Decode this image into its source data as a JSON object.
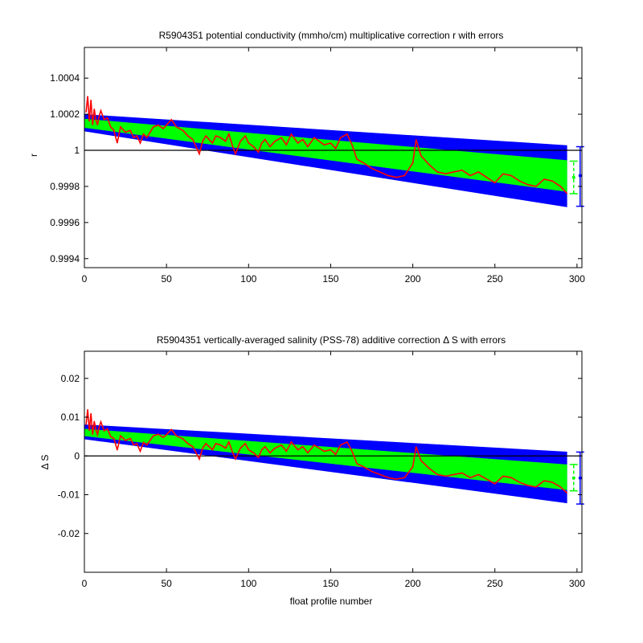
{
  "chart_data": [
    {
      "type": "area",
      "title": "R5904351 potential conductivity (mmho/cm) multiplicative correction r with errors",
      "xlabel": "",
      "ylabel": "r",
      "xlim": [
        0,
        303
      ],
      "ylim": [
        0.99935,
        1.00057
      ],
      "xticks": [
        0,
        50,
        100,
        150,
        200,
        250,
        300
      ],
      "xtick_labels": [
        "0",
        "50",
        "100",
        "150",
        "200",
        "250",
        "300"
      ],
      "yticks": [
        0.9994,
        0.9996,
        0.9998,
        1.0,
        1.0002,
        1.0004
      ],
      "ytick_labels": [
        "0.9994",
        "0.9996",
        "0.9998",
        "1",
        "1.0002",
        "1.0004"
      ],
      "reference_line": 1.0,
      "outer_band": {
        "x": [
          0,
          294
        ],
        "upper": [
          1.0002,
          1.000028
        ],
        "lower": [
          1.000105,
          0.999685
        ],
        "color": "#0000ff"
      },
      "inner_band": {
        "x": [
          0,
          294
        ],
        "upper": [
          1.000175,
          0.999945
        ],
        "lower": [
          1.000125,
          0.99977
        ],
        "color": "#00ff00"
      },
      "error_bars": [
        {
          "x": 298,
          "center": 0.99985,
          "low": 0.99976,
          "high": 0.99994,
          "color": "#00ff00"
        },
        {
          "x": 298,
          "center": 0.99986,
          "low": 0.99969,
          "high": 1.00002,
          "color": "#0000ff"
        }
      ],
      "series": [
        {
          "color": "#ff0000",
          "x": [
            1,
            2,
            3,
            4,
            5,
            6,
            7,
            8,
            9,
            10,
            12,
            14,
            16,
            18,
            20,
            22,
            25,
            28,
            30,
            32,
            34,
            36,
            38,
            40,
            42,
            45,
            48,
            50,
            53,
            56,
            60,
            63,
            66,
            70,
            72,
            74,
            76,
            78,
            80,
            83,
            86,
            88,
            90,
            92,
            95,
            98,
            100,
            103,
            106,
            108,
            110,
            113,
            116,
            120,
            123,
            126,
            130,
            133,
            136,
            140,
            143,
            146,
            150,
            153,
            156,
            160,
            163,
            166,
            170,
            175,
            180,
            185,
            190,
            195,
            200,
            202,
            205,
            210,
            215,
            220,
            225,
            230,
            235,
            240,
            245,
            250,
            255,
            260,
            265,
            270,
            275,
            280,
            285,
            290,
            294
          ],
          "y": [
            1.00021,
            1.0003,
            1.00016,
            1.00028,
            1.00014,
            1.00023,
            1.00017,
            1.00014,
            1.00019,
            1.00022,
            1.00017,
            1.00018,
            1.00013,
            1.00011,
            1.00004,
            1.00013,
            1.0001,
            1.00011,
            1.00007,
            1.00008,
            1.00004,
            1.00009,
            1.00007,
            1.0001,
            1.00013,
            1.00014,
            1.00012,
            1.00014,
            1.00017,
            1.00013,
            1.00011,
            1.00008,
            1.00006,
            0.99998,
            1.00005,
            1.00008,
            1.00006,
            1.00004,
            1.00008,
            1.00007,
            1.00005,
            1.00009,
            1.00003,
            0.99998,
            1.00005,
            1.00008,
            1.00004,
            1.00002,
            0.99999,
            1.00004,
            1.00006,
            1.00002,
            1.00005,
            1.00007,
            1.00003,
            1.00009,
            1.00004,
            1.00006,
            1.00002,
            1.00007,
            1.00005,
            1.00003,
            1.00004,
            1.00001,
            1.00007,
            1.00009,
            1.00003,
            0.99995,
            0.99993,
            0.9999,
            0.99988,
            0.99986,
            0.99985,
            0.99986,
            0.99993,
            1.00006,
            0.99997,
            0.99992,
            0.99988,
            0.99987,
            0.99988,
            0.99989,
            0.99986,
            0.99988,
            0.99985,
            0.99982,
            0.99987,
            0.99986,
            0.99983,
            0.99981,
            0.9998,
            0.99984,
            0.99983,
            0.9998,
            0.99976
          ]
        }
      ]
    },
    {
      "type": "area",
      "title": "R5904351 vertically-averaged salinity (PSS-78) additive correction Δ S with errors",
      "xlabel": "float profile number",
      "ylabel": "Δ S",
      "xlim": [
        0,
        303
      ],
      "ylim": [
        -0.03,
        0.027
      ],
      "xticks": [
        0,
        50,
        100,
        150,
        200,
        250,
        300
      ],
      "xtick_labels": [
        "0",
        "50",
        "100",
        "150",
        "200",
        "250",
        "300"
      ],
      "yticks": [
        -0.02,
        -0.01,
        0.0,
        0.01,
        0.02
      ],
      "ytick_labels": [
        "-0.02",
        "-0.01",
        "0",
        "0.01",
        "0.02"
      ],
      "reference_line": 0.0,
      "outer_band": {
        "x": [
          0,
          294
        ],
        "upper": [
          0.0081,
          0.0011
        ],
        "lower": [
          0.0043,
          -0.0122
        ],
        "color": "#0000ff"
      },
      "inner_band": {
        "x": [
          0,
          294
        ],
        "upper": [
          0.007,
          -0.0022
        ],
        "lower": [
          0.0051,
          -0.0088
        ],
        "color": "#00ff00"
      },
      "error_bars": [
        {
          "x": 298,
          "center": -0.0057,
          "low": -0.009,
          "high": -0.0022,
          "color": "#00ff00"
        },
        {
          "x": 298,
          "center": -0.0057,
          "low": -0.0124,
          "high": 0.001,
          "color": "#0000ff"
        }
      ],
      "series": [
        {
          "color": "#ff0000",
          "x": [
            1,
            2,
            3,
            4,
            5,
            6,
            7,
            8,
            9,
            10,
            12,
            14,
            16,
            18,
            20,
            22,
            25,
            28,
            30,
            32,
            34,
            36,
            38,
            40,
            42,
            45,
            48,
            50,
            53,
            56,
            60,
            63,
            66,
            70,
            72,
            74,
            76,
            78,
            80,
            83,
            86,
            88,
            90,
            92,
            95,
            98,
            100,
            103,
            106,
            108,
            110,
            113,
            116,
            120,
            123,
            126,
            130,
            133,
            136,
            140,
            143,
            146,
            150,
            153,
            156,
            160,
            163,
            166,
            170,
            175,
            180,
            185,
            190,
            195,
            200,
            202,
            205,
            210,
            215,
            220,
            225,
            230,
            235,
            240,
            245,
            250,
            255,
            260,
            265,
            270,
            275,
            280,
            285,
            290,
            294
          ],
          "y": [
            0.008,
            0.012,
            0.0065,
            0.011,
            0.0055,
            0.009,
            0.0068,
            0.0055,
            0.0075,
            0.0088,
            0.0065,
            0.007,
            0.005,
            0.0045,
            0.0015,
            0.0052,
            0.004,
            0.0045,
            0.0028,
            0.0032,
            0.0012,
            0.0035,
            0.0028,
            0.004,
            0.0052,
            0.0056,
            0.0048,
            0.0055,
            0.0068,
            0.0052,
            0.0044,
            0.0032,
            0.0024,
            -0.0008,
            0.002,
            0.0032,
            0.0024,
            0.0016,
            0.0032,
            0.0028,
            0.002,
            0.0036,
            0.0012,
            -0.0008,
            0.002,
            0.0032,
            0.0016,
            0.0008,
            -0.0004,
            0.0016,
            0.0024,
            0.0008,
            0.002,
            0.0028,
            0.0012,
            0.0036,
            0.0016,
            0.0024,
            0.0008,
            0.0028,
            0.002,
            0.0012,
            0.0016,
            0.0004,
            0.0028,
            0.0036,
            0.0012,
            -0.002,
            -0.0028,
            -0.004,
            -0.0048,
            -0.0056,
            -0.006,
            -0.0056,
            -0.0028,
            0.0024,
            -0.0012,
            -0.0032,
            -0.0048,
            -0.0052,
            -0.0048,
            -0.0044,
            -0.0056,
            -0.0048,
            -0.006,
            -0.0072,
            -0.0052,
            -0.0056,
            -0.0068,
            -0.0076,
            -0.008,
            -0.0064,
            -0.0068,
            -0.008,
            -0.0096
          ]
        }
      ]
    }
  ]
}
